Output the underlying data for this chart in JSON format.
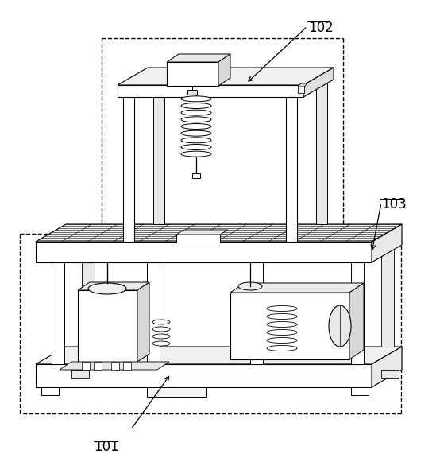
{
  "label_101": "101",
  "label_102": "102",
  "label_103": "103",
  "bg_color": "#ffffff",
  "fig_width": 5.54,
  "fig_height": 5.81,
  "dpi": 100,
  "line_color": "#000000"
}
